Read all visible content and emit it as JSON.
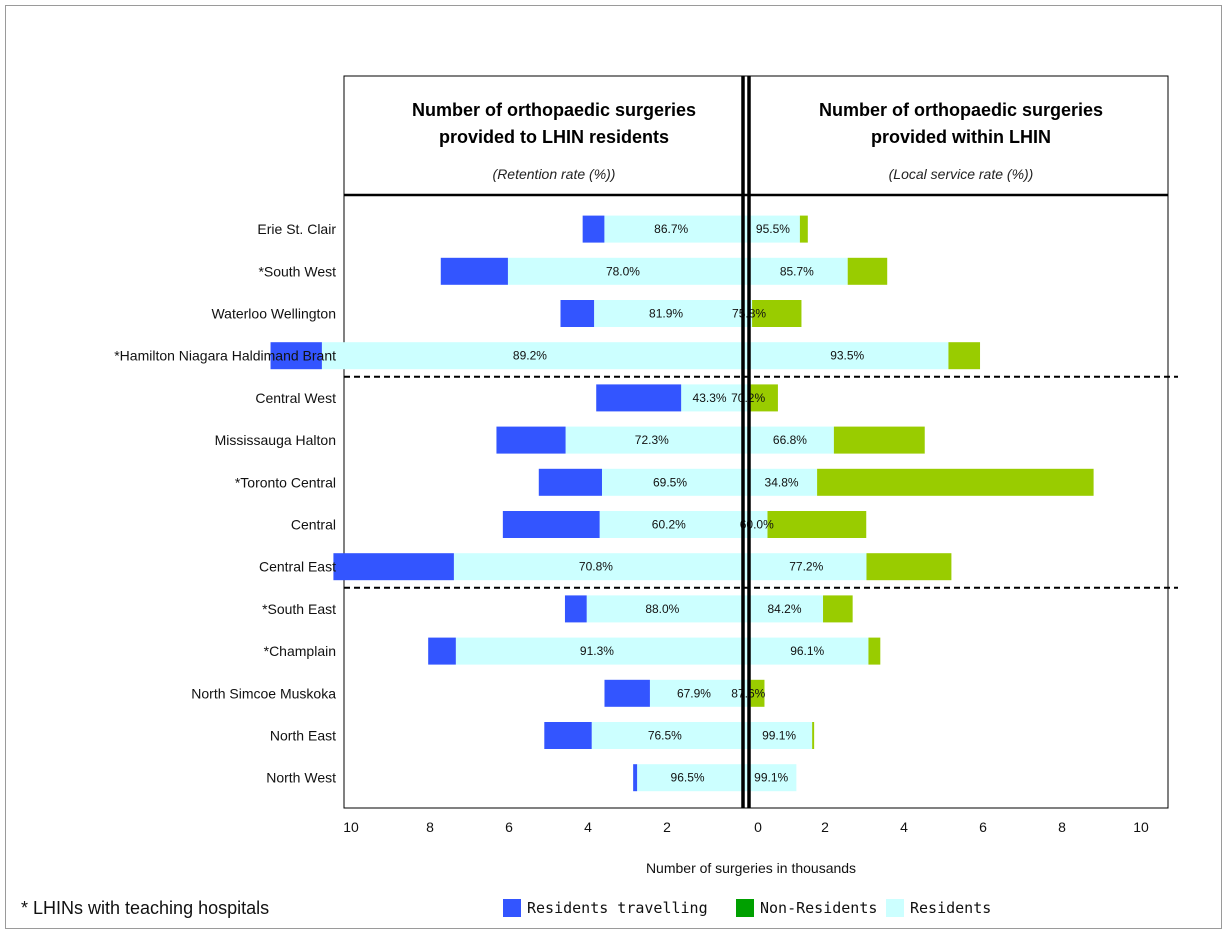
{
  "chart_data": {
    "type": "bar",
    "orientation": "horizontal-diverging",
    "left_panel": {
      "title_line1": "Number of orthopaedic surgeries",
      "title_line2": "provided to LHIN residents",
      "subtitle": "(Retention rate (%))"
    },
    "right_panel": {
      "title_line1": "Number of orthopaedic surgeries",
      "title_line2": "provided within LHIN",
      "subtitle": "(Local service rate (%))"
    },
    "xlabel": "Number of surgeries in thousands",
    "xlim": [
      0,
      10
    ],
    "ticks": [
      "10",
      "8",
      "6",
      "4",
      "2",
      "0",
      "2",
      "4",
      "6",
      "8",
      "10"
    ],
    "categories": [
      "Erie St. Clair",
      "*South West",
      "Waterloo Wellington",
      "*Hamilton Niagara Haldimand Brant",
      "Central West",
      "Mississauga Halton",
      "*Toronto Central",
      "Central",
      "Central East",
      "*South East",
      "*Champlain",
      "North Simcoe Muskoka",
      "North East",
      "North West"
    ],
    "group_breaks_after": [
      3,
      8
    ],
    "series": [
      {
        "name": "Residents travelling",
        "color": "#3355ff",
        "side": "left",
        "values": [
          0.55,
          1.7,
          0.85,
          1.3,
          2.15,
          1.75,
          1.6,
          2.45,
          3.05,
          0.55,
          0.7,
          1.15,
          1.2,
          0.1
        ]
      },
      {
        "name": "Non-Residents",
        "color": "#99cc00",
        "side": "right",
        "values": [
          0.2,
          1.0,
          1.25,
          0.8,
          0.7,
          2.3,
          7.0,
          2.5,
          2.15,
          0.75,
          0.3,
          0.35,
          0.05,
          0.0
        ]
      },
      {
        "name": "Residents",
        "color": "#ccffff",
        "side": "both",
        "values": [
          4.95,
          5.15,
          4.0,
          10.25,
          1.75,
          4.45,
          3.6,
          4.25,
          6.1,
          3.9,
          6.2,
          2.55,
          3.35,
          2.55
        ]
      }
    ],
    "retention_labels": [
      "86.7%",
      "78.0%",
      "81.9%",
      "89.2%",
      "43.3%",
      "72.3%",
      "69.5%",
      "60.2%",
      "70.8%",
      "88.0%",
      "91.3%",
      "67.9%",
      "76.5%",
      "96.5%"
    ],
    "local_service_labels": [
      "95.5%",
      "85.7%",
      "75.8%",
      "93.5%",
      "70.2%",
      "66.8%",
      "34.8%",
      "60.0%",
      "77.2%",
      "84.2%",
      "96.1%",
      "87.6%",
      "99.1%",
      "99.1%"
    ],
    "legend": {
      "placement": "bottom",
      "items": [
        "Residents travelling",
        "Non-Residents",
        "Residents"
      ],
      "colors": [
        "#3355ff",
        "#00a000",
        "#ccffff"
      ]
    },
    "note": "* LHINs with teaching hospitals"
  }
}
